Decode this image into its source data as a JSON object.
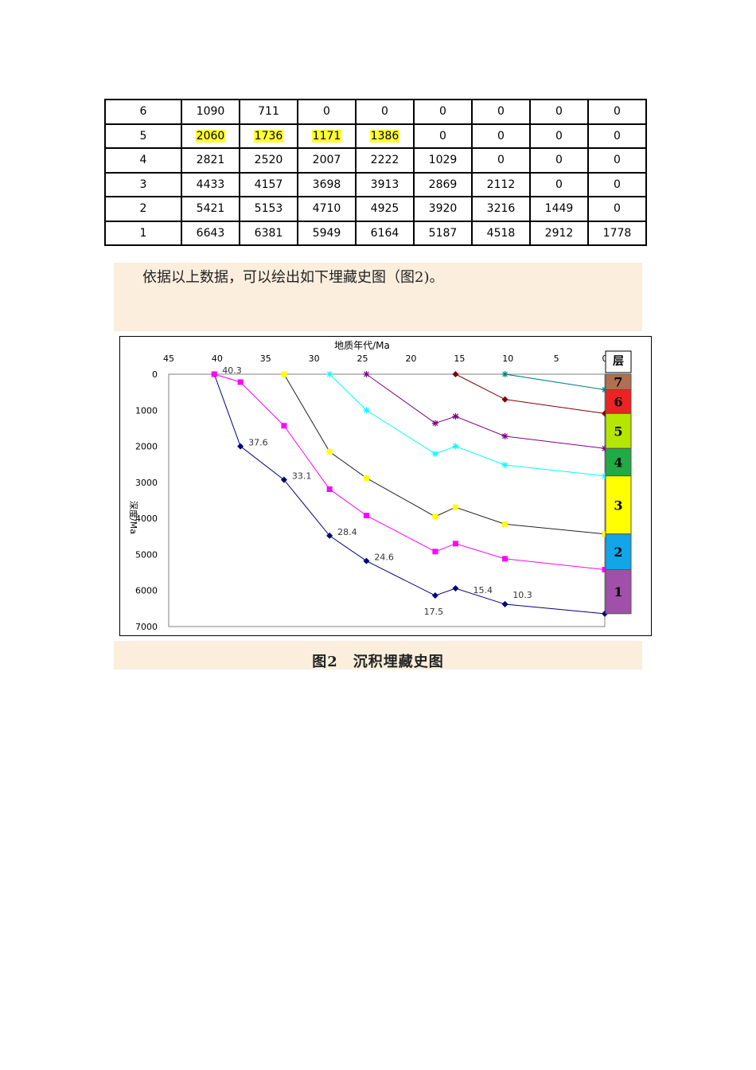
{
  "table": {
    "rows": [
      {
        "label": "6",
        "values": [
          "1090",
          "711",
          "0",
          "0",
          "0",
          "0",
          "0",
          "0"
        ],
        "highlight": [
          false,
          false,
          false,
          false,
          false,
          false,
          false,
          false
        ]
      },
      {
        "label": "5",
        "values": [
          "2060",
          "1736",
          "1171",
          "1386",
          "0",
          "0",
          "0",
          "0"
        ],
        "highlight": [
          true,
          true,
          true,
          true,
          false,
          false,
          false,
          false
        ]
      },
      {
        "label": "4",
        "values": [
          "2821",
          "2520",
          "2007",
          "2222",
          "1029",
          "0",
          "0",
          "0"
        ],
        "highlight": [
          false,
          false,
          false,
          false,
          false,
          false,
          false,
          false
        ]
      },
      {
        "label": "3",
        "values": [
          "4433",
          "4157",
          "3698",
          "3913",
          "2869",
          "2112",
          "0",
          "0"
        ],
        "highlight": [
          false,
          false,
          false,
          false,
          false,
          false,
          false,
          false
        ]
      },
      {
        "label": "2",
        "values": [
          "5421",
          "5153",
          "4710",
          "4925",
          "3920",
          "3216",
          "1449",
          "0"
        ],
        "highlight": [
          false,
          false,
          false,
          false,
          false,
          false,
          false,
          false
        ]
      },
      {
        "label": "1",
        "values": [
          "6643",
          "6381",
          "5949",
          "6164",
          "5187",
          "4518",
          "2912",
          "1778"
        ],
        "highlight": [
          false,
          false,
          false,
          false,
          false,
          false,
          false,
          false
        ]
      }
    ]
  },
  "paragraph": "依据以上数据，可以绘出如下埋藏史图（图2)。",
  "figure_caption": "图2　沉积埋藏史图",
  "chart_data": {
    "type": "line",
    "xlabel": "地质年代/Ma",
    "ylabel": "深度/Ma",
    "xlim": [
      45,
      0
    ],
    "ylim": [
      0,
      7000
    ],
    "x_ticks": [
      "45",
      "40",
      "35",
      "30",
      "25",
      "20",
      "15",
      "10",
      "5",
      "0"
    ],
    "y_ticks": [
      "0",
      "1000",
      "2000",
      "3000",
      "4000",
      "5000",
      "6000",
      "7000"
    ],
    "x_axis_position": "top",
    "y_reversed": true,
    "grid": false,
    "series": [
      {
        "color": "#00007f",
        "marker": "diamond",
        "x": [
          40.3,
          37.6,
          33.1,
          28.4,
          24.6,
          17.5,
          15.4,
          10.3,
          0
        ],
        "y": [
          0,
          2000,
          2930,
          4480,
          5180,
          6140,
          5940,
          6380,
          6643
        ]
      },
      {
        "color": "#ff00ff",
        "marker": "square",
        "x": [
          40.3,
          37.6,
          33.1,
          28.4,
          24.6,
          17.5,
          15.4,
          10.3,
          0
        ],
        "y": [
          0,
          220,
          1430,
          3190,
          3920,
          4920,
          4700,
          5120,
          5421
        ]
      },
      {
        "color": "#ffff00",
        "marker": "square",
        "x": [
          33.1,
          28.4,
          24.6,
          17.5,
          15.4,
          10.3,
          0
        ],
        "y": [
          0,
          2150,
          2880,
          3950,
          3690,
          4160,
          4433
        ]
      },
      {
        "color": "#00ffff",
        "marker": "star",
        "x": [
          28.4,
          24.6,
          17.5,
          15.4,
          10.3,
          0
        ],
        "y": [
          0,
          1000,
          2210,
          2000,
          2520,
          2821
        ]
      },
      {
        "color": "#800080",
        "marker": "star",
        "x": [
          24.6,
          17.5,
          15.4,
          10.3,
          0
        ],
        "y": [
          0,
          1360,
          1170,
          1720,
          2060
        ]
      },
      {
        "color": "#7f0000",
        "marker": "diamond",
        "x": [
          15.4,
          10.3,
          0
        ],
        "y": [
          0,
          700,
          1090
        ]
      },
      {
        "color": "#008080",
        "marker": "star",
        "x": [
          10.3,
          0
        ],
        "y": [
          0,
          430
        ]
      }
    ],
    "point_labels": [
      {
        "text": "40.3",
        "x": 40.3,
        "y": 0
      },
      {
        "text": "37.6",
        "x": 37.6,
        "y": 2000
      },
      {
        "text": "33.1",
        "x": 33.1,
        "y": 2930
      },
      {
        "text": "28.4",
        "x": 28.4,
        "y": 4480
      },
      {
        "text": "24.6",
        "x": 24.6,
        "y": 5180
      },
      {
        "text": "17.5",
        "x": 17.5,
        "y": 6140
      },
      {
        "text": "15.4",
        "x": 15.4,
        "y": 5940
      },
      {
        "text": "10.3",
        "x": 10.3,
        "y": 6380
      }
    ],
    "strata_legend": {
      "header": "层",
      "layers": [
        {
          "label": "7",
          "color": "#b07050",
          "top": 0,
          "bottom": 430
        },
        {
          "label": "6",
          "color": "#ee2222",
          "top": 430,
          "bottom": 1090
        },
        {
          "label": "5",
          "color": "#b4e600",
          "top": 1090,
          "bottom": 2060
        },
        {
          "label": "4",
          "color": "#22aa44",
          "top": 2060,
          "bottom": 2821
        },
        {
          "label": "3",
          "color": "#ffff00",
          "top": 2821,
          "bottom": 4433
        },
        {
          "label": "2",
          "color": "#11a6e8",
          "top": 4433,
          "bottom": 5421
        },
        {
          "label": "1",
          "color": "#a050a8",
          "top": 5421,
          "bottom": 6643
        }
      ]
    }
  }
}
